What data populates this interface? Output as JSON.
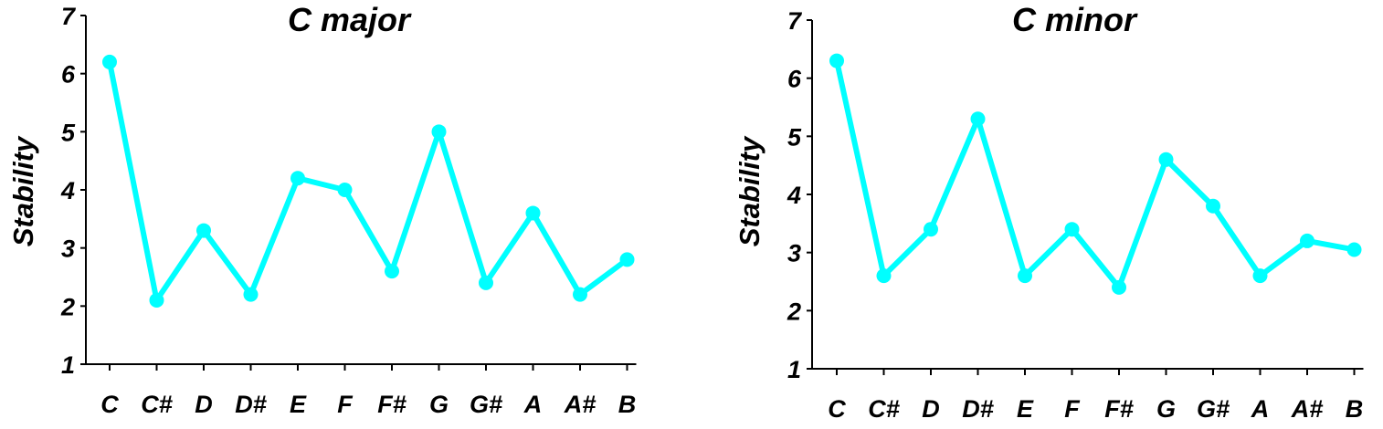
{
  "chart_data": [
    {
      "type": "line",
      "title": "C major",
      "xlabel": "",
      "ylabel": "Stability",
      "categories": [
        "C",
        "C#",
        "D",
        "D#",
        "E",
        "F",
        "F#",
        "G",
        "G#",
        "A",
        "A#",
        "B"
      ],
      "yticks": [
        "1",
        "2",
        "3",
        "4",
        "5",
        "6",
        "7"
      ],
      "ylim": [
        1,
        7
      ],
      "grid": false,
      "series": [
        {
          "values": [
            6.2,
            2.1,
            3.3,
            2.2,
            4.2,
            4.0,
            2.6,
            5.0,
            2.4,
            3.6,
            2.2,
            2.8
          ]
        }
      ]
    },
    {
      "type": "line",
      "title": "C minor",
      "xlabel": "",
      "ylabel": "Stability",
      "categories": [
        "C",
        "C#",
        "D",
        "D#",
        "E",
        "F",
        "F#",
        "G",
        "G#",
        "A",
        "A#",
        "B"
      ],
      "yticks": [
        "1",
        "2",
        "3",
        "4",
        "5",
        "6",
        "7"
      ],
      "ylim": [
        1,
        7
      ],
      "grid": false,
      "series": [
        {
          "values": [
            6.3,
            2.6,
            3.4,
            5.3,
            2.6,
            3.4,
            2.4,
            4.6,
            3.8,
            2.6,
            3.2,
            3.05
          ]
        }
      ]
    }
  ],
  "colors": {
    "series": "#00FFFF",
    "axis": "#000000"
  }
}
